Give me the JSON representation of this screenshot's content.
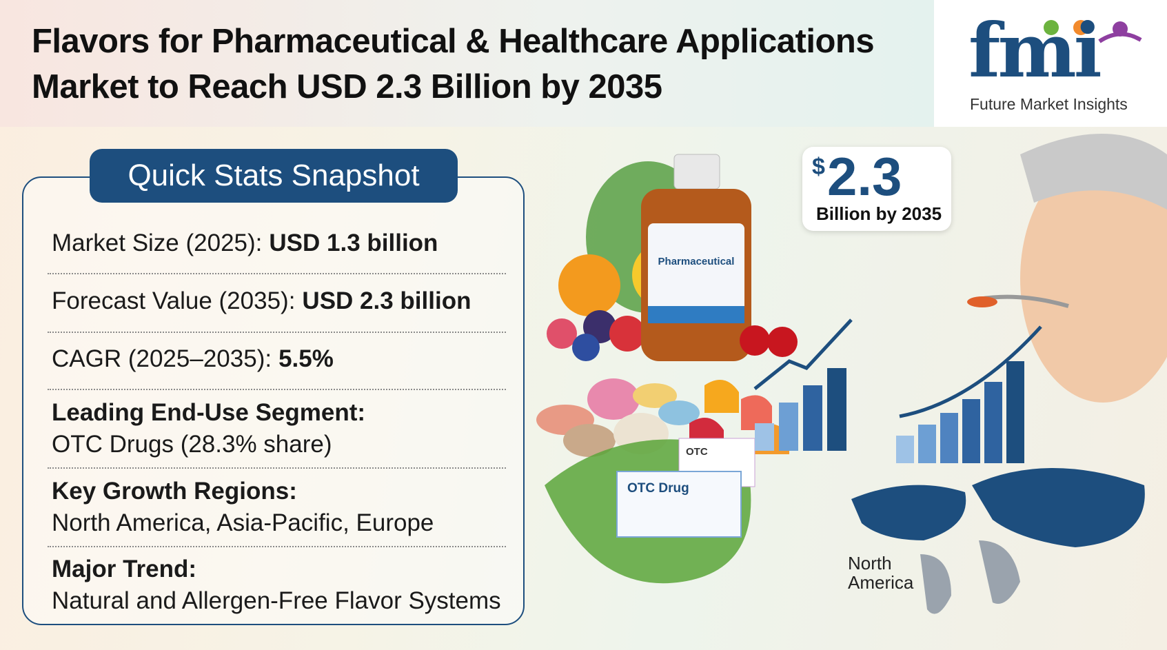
{
  "header": {
    "title_lines": [
      "Flavors for Pharmaceutical & Healthcare Applications",
      "Market to Reach USD 2.3 Billion by 2035"
    ]
  },
  "logo": {
    "mark": "fmi",
    "name": "Future Market Insights"
  },
  "stats": {
    "heading": "Quick Stats Snapshot",
    "figures": [
      {
        "label": "Market Size (2025):",
        "value": "USD 1.3 billion"
      },
      {
        "label": "Forecast Value (2035):",
        "value": "USD 2.3 billion"
      },
      {
        "label": "CAGR (2025–2035):",
        "value": "5.5%"
      }
    ],
    "highlights": [
      {
        "label": "Leading End-Use Segment:",
        "value": "OTC Drugs (28.3% share)"
      },
      {
        "label": "Key Growth Regions:",
        "value": "North America, Asia-Pacific, Europe"
      },
      {
        "label": "Major Trend:",
        "value": "Natural and Allergen-Free Flavor Systems"
      }
    ]
  },
  "callout": {
    "currency": "$",
    "amount": "2.3",
    "caption": "Billion by 2035"
  },
  "illustration": {
    "bottle_label": "Pharmaceutical",
    "box_small": "OTC",
    "box_large": "OTC Drug",
    "map_label": "North America"
  }
}
